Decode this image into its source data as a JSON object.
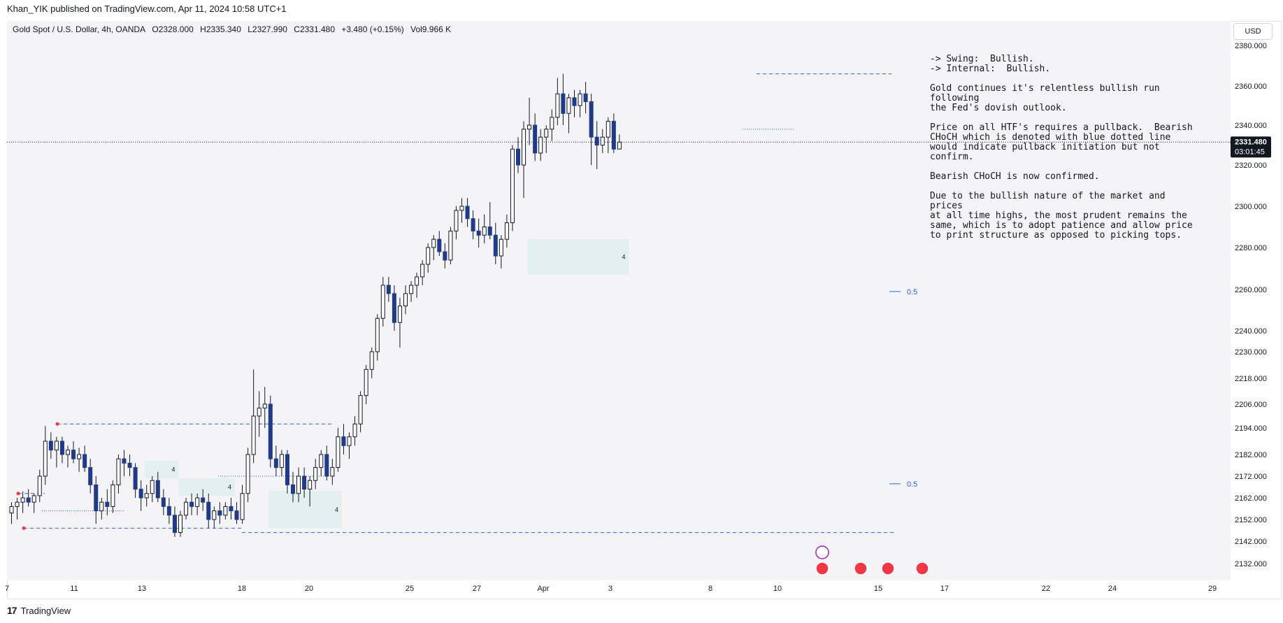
{
  "header": {
    "published": "Khan_YIK published on TradingView.com, Apr 11, 2024 10:58 UTC+1"
  },
  "legend": {
    "symbol": "Gold Spot / U.S. Dollar, 4h, OANDA",
    "open": "O2328.000",
    "high": "H2335.340",
    "low": "L2327.990",
    "close": "C2331.480",
    "change": "+3.480 (+0.15%)",
    "volume": "Vol9.966 K"
  },
  "currency_button": "USD",
  "notes": [
    "-> Swing:  Bullish.\n-> Internal:  Bullish.",
    "Gold continues it's relentless bullish run following\nthe Fed's dovish outlook.",
    "Price on all HTF's requires a pullback.  Bearish\nCHoCH which is denoted with blue dotted line\nwould indicate pullback initiation but not confirm.",
    "Bearish CHoCH is now confirmed.",
    "Due to the bullish nature of the market and prices\nat all time highs, the most prudent remains the\nsame, which is to adopt patience and allow price\nto print structure as opposed to picking tops."
  ],
  "footer": {
    "logo": "17",
    "brand": "TradingView"
  },
  "chart_data": {
    "type": "candlestick",
    "interval": "4h",
    "y_axis": {
      "ticks": [
        2380,
        2360,
        2340,
        2320,
        2300,
        2280,
        2260,
        2240,
        2230,
        2218,
        2206,
        2194,
        2182,
        2172,
        2162,
        2152,
        2142,
        2132
      ],
      "tick_labels": [
        "2380.000",
        "2360.000",
        "2340.000",
        "2320.000",
        "2300.000",
        "2280.000",
        "2260.000",
        "2240.000",
        "2230.000",
        "2218.000",
        "2206.000",
        "2194.000",
        "2182.000",
        "2172.000",
        "2162.000",
        "2152.000",
        "2142.000",
        "2132.000"
      ]
    },
    "x_axis": {
      "labels": [
        "7",
        "11",
        "13",
        "18",
        "20",
        "25",
        "27",
        "Apr",
        "3",
        "8",
        "10",
        "15",
        "17",
        "22",
        "24",
        "29"
      ]
    },
    "last_price": {
      "value": "2331.480",
      "countdown": "03:01:45",
      "y": 2331.48
    },
    "candles": [
      [
        2155,
        2160,
        2150,
        2158
      ],
      [
        2158,
        2162,
        2152,
        2160
      ],
      [
        2160,
        2165,
        2155,
        2162
      ],
      [
        2162,
        2166,
        2158,
        2160
      ],
      [
        2160,
        2164,
        2155,
        2163
      ],
      [
        2163,
        2175,
        2160,
        2172
      ],
      [
        2172,
        2195,
        2168,
        2188
      ],
      [
        2188,
        2192,
        2180,
        2184
      ],
      [
        2184,
        2190,
        2176,
        2188
      ],
      [
        2188,
        2190,
        2178,
        2182
      ],
      [
        2182,
        2186,
        2176,
        2184
      ],
      [
        2184,
        2188,
        2178,
        2180
      ],
      [
        2180,
        2185,
        2174,
        2182
      ],
      [
        2182,
        2186,
        2174,
        2176
      ],
      [
        2176,
        2180,
        2164,
        2168
      ],
      [
        2168,
        2172,
        2150,
        2156
      ],
      [
        2156,
        2162,
        2152,
        2160
      ],
      [
        2160,
        2166,
        2154,
        2158
      ],
      [
        2158,
        2170,
        2155,
        2168
      ],
      [
        2168,
        2182,
        2164,
        2180
      ],
      [
        2180,
        2184,
        2172,
        2178
      ],
      [
        2178,
        2182,
        2172,
        2176
      ],
      [
        2176,
        2178,
        2162,
        2166
      ],
      [
        2166,
        2170,
        2156,
        2162
      ],
      [
        2162,
        2168,
        2158,
        2164
      ],
      [
        2164,
        2172,
        2160,
        2170
      ],
      [
        2170,
        2174,
        2160,
        2162
      ],
      [
        2162,
        2166,
        2154,
        2158
      ],
      [
        2158,
        2162,
        2150,
        2154
      ],
      [
        2154,
        2158,
        2144,
        2146
      ],
      [
        2146,
        2156,
        2144,
        2154
      ],
      [
        2154,
        2162,
        2152,
        2160
      ],
      [
        2160,
        2164,
        2154,
        2158
      ],
      [
        2158,
        2164,
        2154,
        2162
      ],
      [
        2162,
        2166,
        2156,
        2160
      ],
      [
        2160,
        2164,
        2148,
        2152
      ],
      [
        2152,
        2158,
        2148,
        2156
      ],
      [
        2156,
        2160,
        2150,
        2154
      ],
      [
        2154,
        2160,
        2152,
        2158
      ],
      [
        2158,
        2162,
        2152,
        2156
      ],
      [
        2156,
        2160,
        2150,
        2152
      ],
      [
        2152,
        2168,
        2150,
        2164
      ],
      [
        2164,
        2185,
        2160,
        2182
      ],
      [
        2182,
        2222,
        2178,
        2200
      ],
      [
        2200,
        2212,
        2190,
        2204
      ],
      [
        2204,
        2214,
        2194,
        2206
      ],
      [
        2206,
        2210,
        2176,
        2180
      ],
      [
        2180,
        2186,
        2172,
        2176
      ],
      [
        2176,
        2184,
        2172,
        2182
      ],
      [
        2182,
        2184,
        2164,
        2168
      ],
      [
        2168,
        2174,
        2160,
        2164
      ],
      [
        2164,
        2176,
        2160,
        2172
      ],
      [
        2172,
        2176,
        2162,
        2166
      ],
      [
        2166,
        2172,
        2158,
        2170
      ],
      [
        2170,
        2180,
        2166,
        2176
      ],
      [
        2176,
        2184,
        2172,
        2182
      ],
      [
        2182,
        2186,
        2170,
        2172
      ],
      [
        2172,
        2180,
        2168,
        2176
      ],
      [
        2176,
        2194,
        2174,
        2190
      ],
      [
        2190,
        2196,
        2182,
        2186
      ],
      [
        2186,
        2192,
        2180,
        2190
      ],
      [
        2190,
        2200,
        2186,
        2196
      ],
      [
        2196,
        2212,
        2192,
        2210
      ],
      [
        2210,
        2224,
        2206,
        2222
      ],
      [
        2222,
        2232,
        2218,
        2230
      ],
      [
        2230,
        2248,
        2226,
        2246
      ],
      [
        2246,
        2266,
        2242,
        2262
      ],
      [
        2262,
        2266,
        2254,
        2258
      ],
      [
        2258,
        2262,
        2240,
        2244
      ],
      [
        2244,
        2256,
        2232,
        2252
      ],
      [
        2252,
        2262,
        2248,
        2258
      ],
      [
        2258,
        2264,
        2254,
        2262
      ],
      [
        2262,
        2268,
        2256,
        2266
      ],
      [
        2266,
        2274,
        2262,
        2272
      ],
      [
        2272,
        2282,
        2268,
        2280
      ],
      [
        2280,
        2286,
        2274,
        2284
      ],
      [
        2284,
        2288,
        2276,
        2278
      ],
      [
        2278,
        2282,
        2270,
        2274
      ],
      [
        2274,
        2290,
        2272,
        2288
      ],
      [
        2288,
        2300,
        2284,
        2298
      ],
      [
        2298,
        2304,
        2292,
        2300
      ],
      [
        2300,
        2304,
        2290,
        2294
      ],
      [
        2294,
        2298,
        2284,
        2288
      ],
      [
        2288,
        2294,
        2280,
        2286
      ],
      [
        2286,
        2296,
        2282,
        2290
      ],
      [
        2290,
        2302,
        2284,
        2286
      ],
      [
        2286,
        2292,
        2272,
        2276
      ],
      [
        2276,
        2286,
        2270,
        2284
      ],
      [
        2284,
        2296,
        2280,
        2292
      ],
      [
        2292,
        2330,
        2288,
        2328
      ],
      [
        2328,
        2334,
        2316,
        2320
      ],
      [
        2320,
        2342,
        2304,
        2338
      ],
      [
        2338,
        2354,
        2330,
        2340
      ],
      [
        2340,
        2346,
        2322,
        2326
      ],
      [
        2326,
        2338,
        2322,
        2334
      ],
      [
        2334,
        2340,
        2326,
        2338
      ],
      [
        2338,
        2348,
        2332,
        2344
      ],
      [
        2344,
        2364,
        2340,
        2356
      ],
      [
        2356,
        2366,
        2340,
        2346
      ],
      [
        2346,
        2356,
        2336,
        2354
      ],
      [
        2354,
        2358,
        2344,
        2350
      ],
      [
        2350,
        2358,
        2344,
        2356
      ],
      [
        2356,
        2362,
        2346,
        2352
      ],
      [
        2352,
        2356,
        2320,
        2334
      ],
      [
        2334,
        2342,
        2318,
        2330
      ],
      [
        2330,
        2338,
        2326,
        2334
      ],
      [
        2334,
        2344,
        2326,
        2342
      ],
      [
        2342,
        2346,
        2326,
        2328
      ],
      [
        2328,
        2335.34,
        2327.99,
        2331.48
      ]
    ],
    "levels": [
      {
        "label": "0.5",
        "y": 2259
      },
      {
        "label": "0.5",
        "y": 2168.5
      }
    ],
    "zones": [
      {
        "label": "4",
        "x0": 92,
        "x1": 110,
        "y_top": 2284,
        "y_bot": 2267
      },
      {
        "label": "4",
        "x0": 46,
        "x1": 59,
        "y_top": 2165,
        "y_bot": 2148
      },
      {
        "label": "4",
        "x0": 24,
        "x1": 30,
        "y_top": 2179,
        "y_bot": 2171
      },
      {
        "label": "4",
        "x0": 30,
        "x1": 40,
        "y_top": 2171,
        "y_bot": 2163
      }
    ]
  }
}
